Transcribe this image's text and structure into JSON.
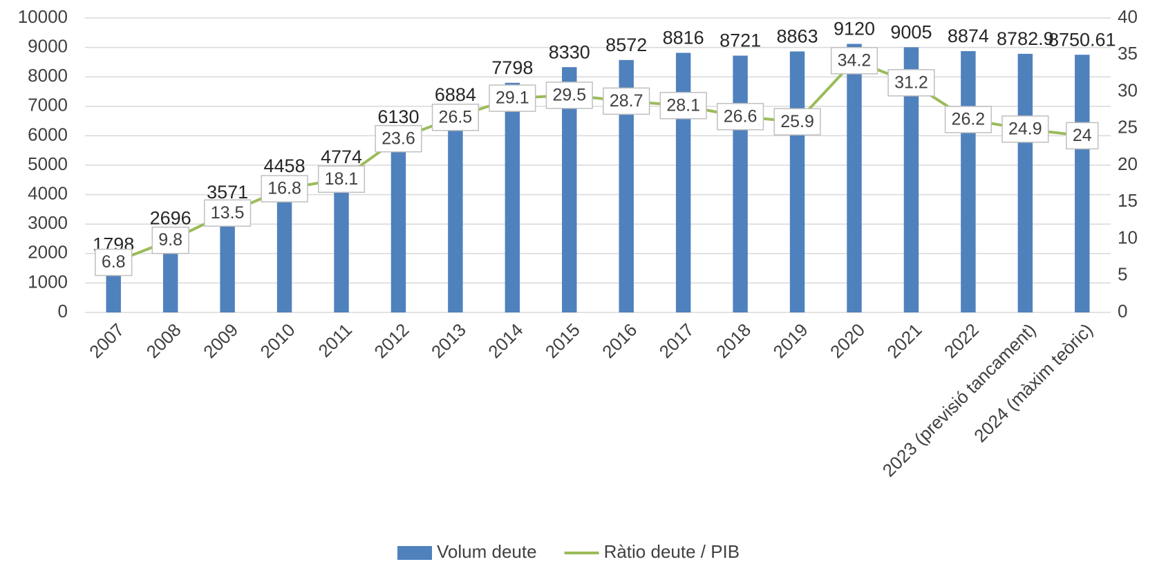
{
  "chart_data": {
    "type": "bar",
    "categories": [
      "2007",
      "2008",
      "2009",
      "2010",
      "2011",
      "2012",
      "2013",
      "2014",
      "2015",
      "2016",
      "2017",
      "2018",
      "2019",
      "2020",
      "2021",
      "2022",
      "2023 (previsió tancament)",
      "2024 (màxim teòric)"
    ],
    "series": [
      {
        "name": "Volum deute",
        "type": "bar",
        "color": "#4f81bd",
        "values": [
          1798,
          2696,
          3571,
          4458,
          4774,
          6130,
          6884,
          7798,
          8330,
          8572,
          8816,
          8721,
          8863,
          9120,
          9005,
          8874,
          8782.9,
          8750.61
        ]
      },
      {
        "name": "Ràtio deute / PIB",
        "type": "line",
        "axis": "y2",
        "color": "#9bbb59",
        "values": [
          6.8,
          9.8,
          13.5,
          16.8,
          18.1,
          23.6,
          26.5,
          29.1,
          29.5,
          28.7,
          28.1,
          26.6,
          25.9,
          34.2,
          31.2,
          26.2,
          24.9,
          24
        ]
      }
    ],
    "ylim": [
      0,
      10000
    ],
    "yticks": [
      0,
      1000,
      2000,
      3000,
      4000,
      5000,
      6000,
      7000,
      8000,
      9000,
      10000
    ],
    "y2lim": [
      0,
      40
    ],
    "y2ticks": [
      0,
      5,
      10,
      15,
      20,
      25,
      30,
      35,
      40
    ],
    "grid": true,
    "legend": "bottom"
  }
}
